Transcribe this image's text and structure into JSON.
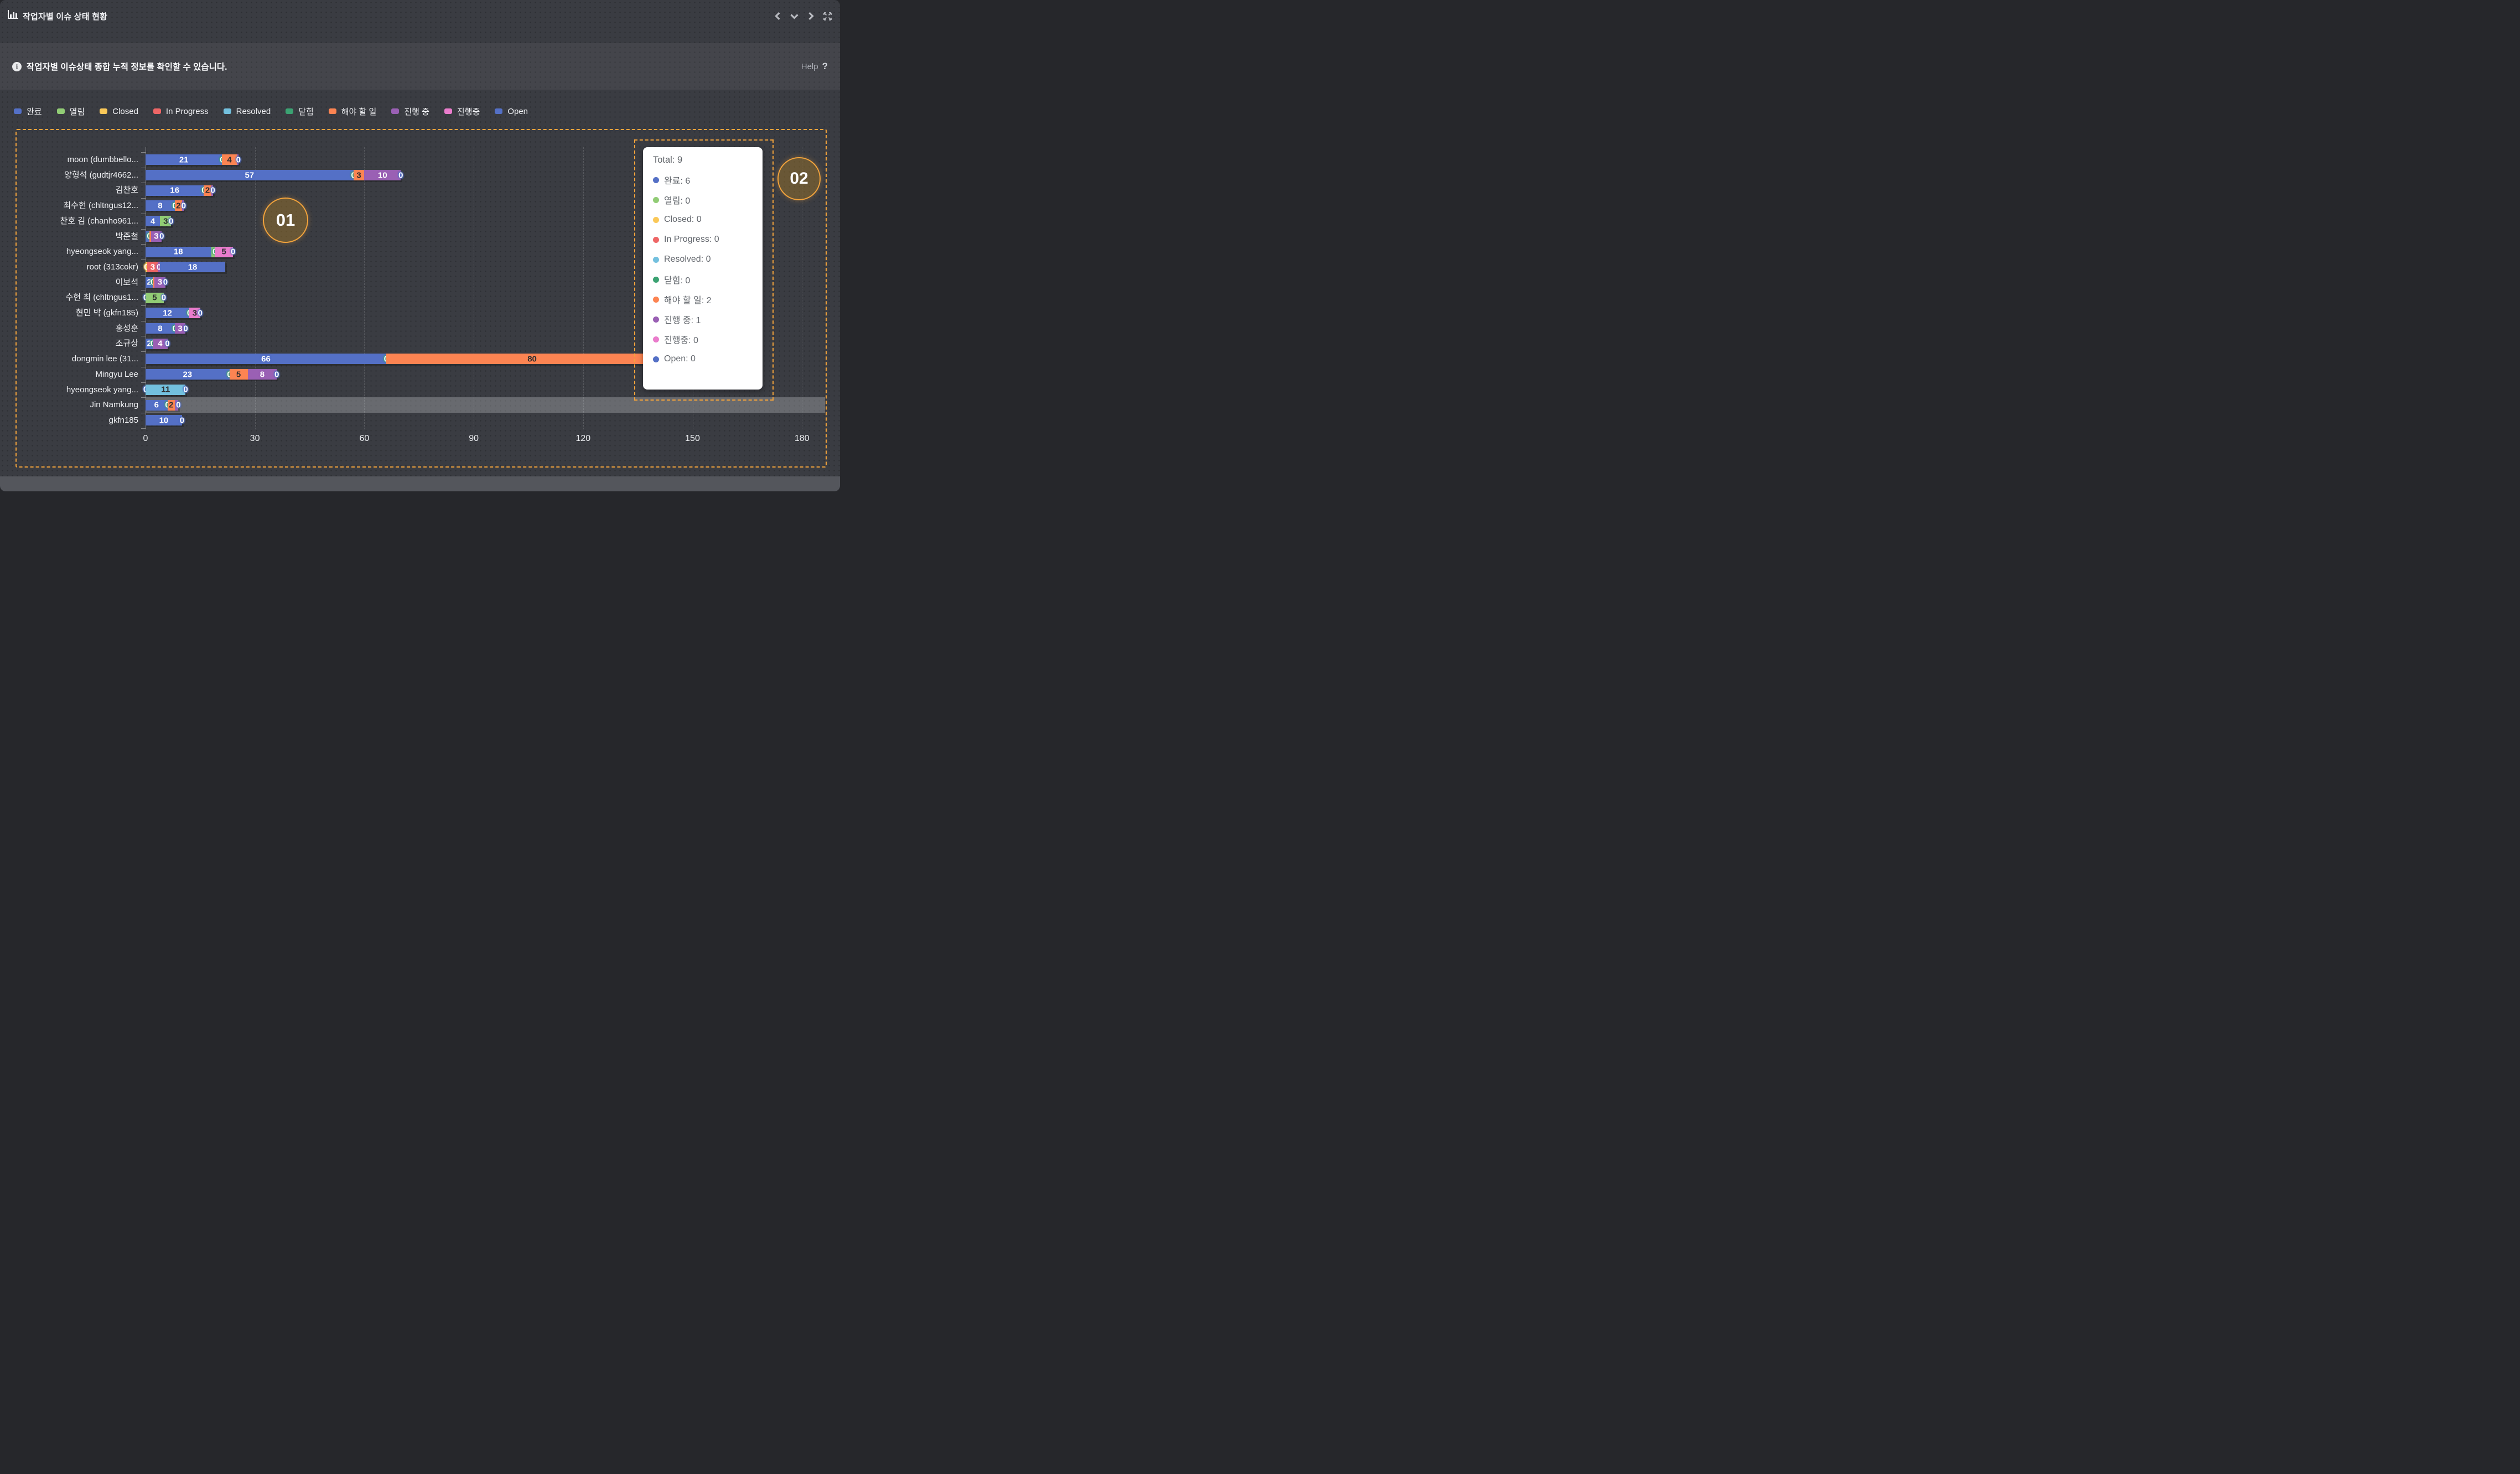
{
  "header": {
    "title": "작업자별 이슈 상태 현황",
    "icons": [
      "bar-chart-icon",
      "chevron-left-icon",
      "chevron-down-icon",
      "chevron-right-icon",
      "expand-icon"
    ]
  },
  "info": {
    "text": "작업자별 이슈상태 종합 누적 정보를 확인할 수 있습니다.",
    "help_label": "Help",
    "help_icon": "question-mark-icon"
  },
  "legend": {
    "items": [
      {
        "label": "완료",
        "color": "#5470c6"
      },
      {
        "label": "열림",
        "color": "#91cc75"
      },
      {
        "label": "Closed",
        "color": "#fac858"
      },
      {
        "label": "In Progress",
        "color": "#ee6666"
      },
      {
        "label": "Resolved",
        "color": "#73c0de"
      },
      {
        "label": "닫힘",
        "color": "#3ba272"
      },
      {
        "label": "해야 할 일",
        "color": "#fc8452"
      },
      {
        "label": "진행 중",
        "color": "#9a60b4"
      },
      {
        "label": "진행중",
        "color": "#ea7ccc"
      },
      {
        "label": "Open",
        "color": "#5470c6"
      }
    ]
  },
  "chart_data": {
    "type": "bar",
    "orientation": "horizontal",
    "stacked": true,
    "title": "작업자별 이슈 상태 현황",
    "xlabel": "",
    "ylabel": "",
    "xlim": [
      0,
      186
    ],
    "x_ticks": [
      "0",
      "30",
      "60",
      "90",
      "120",
      "150",
      "180"
    ],
    "grid": "vertical-dashed",
    "legend_position": "top",
    "highlight_row": "Jin Namkung",
    "series_colors": {
      "완료": "#5470c6",
      "열림": "#91cc75",
      "Closed": "#fac858",
      "In Progress": "#ee6666",
      "Resolved": "#73c0de",
      "닫힘": "#3ba272",
      "해야 할 일": "#fc8452",
      "진행 중": "#9a60b4",
      "진행중": "#ea7ccc",
      "Open": "#5470c6"
    },
    "dark_text_series": [
      "열림",
      "Closed",
      "Resolved",
      "해야 할 일",
      "진행중"
    ],
    "rows": [
      {
        "name": "moon (dumbbello...",
        "segments": [
          {
            "series": "완료",
            "value": 21,
            "label": "21"
          },
          {
            "series": "닫힘",
            "value": 0,
            "label": "0"
          },
          {
            "series": "해야 할 일",
            "value": 4,
            "label": "4"
          },
          {
            "series": "진행 중",
            "value": 0,
            "label": "",
            "sliver": true
          },
          {
            "series": "Open",
            "value": 0,
            "label": "0"
          }
        ]
      },
      {
        "name": "양형석 (gudtjr4662...",
        "segments": [
          {
            "series": "완료",
            "value": 57,
            "label": "57"
          },
          {
            "series": "닫힘",
            "value": 0,
            "label": "0"
          },
          {
            "series": "해야 할 일",
            "value": 3,
            "label": "3"
          },
          {
            "series": "진행 중",
            "value": 10,
            "label": "10"
          },
          {
            "series": "Open",
            "value": 0,
            "label": "0"
          }
        ]
      },
      {
        "name": "김찬호",
        "segments": [
          {
            "series": "완료",
            "value": 16,
            "label": "16"
          },
          {
            "series": "닫힘",
            "value": 0,
            "label": "0"
          },
          {
            "series": "해야 할 일",
            "value": 2,
            "label": "2"
          },
          {
            "series": "진행 중",
            "value": 0,
            "label": "",
            "sliver": true
          },
          {
            "series": "Open",
            "value": 0,
            "label": "0"
          }
        ]
      },
      {
        "name": "최수현 (chltngus12...",
        "segments": [
          {
            "series": "완료",
            "value": 8,
            "label": "8"
          },
          {
            "series": "닫힘",
            "value": 0,
            "label": "0"
          },
          {
            "series": "해야 할 일",
            "value": 2,
            "label": "2"
          },
          {
            "series": "진행 중",
            "value": 0,
            "label": "",
            "sliver": true
          },
          {
            "series": "Open",
            "value": 0,
            "label": "0"
          }
        ]
      },
      {
        "name": "찬호 김 (chanho961...",
        "segments": [
          {
            "series": "완료",
            "value": 4,
            "label": "4"
          },
          {
            "series": "열림",
            "value": 3,
            "label": "3"
          },
          {
            "series": "Open",
            "value": 0,
            "label": "0"
          }
        ]
      },
      {
        "name": "박준철",
        "segments": [
          {
            "series": "완료",
            "value": 1,
            "label": ""
          },
          {
            "series": "닫힘",
            "value": 0,
            "label": "0"
          },
          {
            "series": "해야 할 일",
            "value": 0,
            "label": "",
            "sliver": true
          },
          {
            "series": "진행 중",
            "value": 3,
            "label": "3"
          },
          {
            "series": "Open",
            "value": 0,
            "label": "0"
          }
        ]
      },
      {
        "name": "hyeongseok yang...",
        "segments": [
          {
            "series": "완료",
            "value": 18,
            "label": "18"
          },
          {
            "series": "열림",
            "value": 1,
            "label": ""
          },
          {
            "series": "닫힘",
            "value": 0,
            "label": "0"
          },
          {
            "series": "진행중",
            "value": 5,
            "label": "5"
          },
          {
            "series": "Open",
            "value": 0,
            "label": "0"
          }
        ]
      },
      {
        "name": "root (313cokr)",
        "segments": [
          {
            "series": "Closed",
            "value": 0,
            "label": "0",
            "sliver": true
          },
          {
            "series": "In Progress",
            "value": 3,
            "label": "3"
          },
          {
            "series": "진행 중",
            "value": 0,
            "label": "0",
            "sliver": true
          },
          {
            "series": "Open",
            "value": 18,
            "label": "18"
          }
        ]
      },
      {
        "name": "이보석",
        "segments": [
          {
            "series": "완료",
            "value": 2,
            "label": "2"
          },
          {
            "series": "닫힘",
            "value": 0,
            "label": "0"
          },
          {
            "series": "해야 할 일",
            "value": 0,
            "label": "",
            "sliver": true
          },
          {
            "series": "진행 중",
            "value": 3,
            "label": "3"
          },
          {
            "series": "Open",
            "value": 0,
            "label": "0"
          }
        ]
      },
      {
        "name": "수현 최 (chltngus1...",
        "segments": [
          {
            "series": "완료",
            "value": 0,
            "label": "0"
          },
          {
            "series": "열림",
            "value": 5,
            "label": "5"
          },
          {
            "series": "Open",
            "value": 0,
            "label": "0"
          }
        ]
      },
      {
        "name": "현민 박 (gkfn185)",
        "segments": [
          {
            "series": "완료",
            "value": 12,
            "label": "12"
          },
          {
            "series": "닫힘",
            "value": 0,
            "label": "0"
          },
          {
            "series": "진행중",
            "value": 3,
            "label": "3"
          },
          {
            "series": "Open",
            "value": 0,
            "label": "0"
          }
        ]
      },
      {
        "name": "홍성훈",
        "segments": [
          {
            "series": "완료",
            "value": 8,
            "label": "8"
          },
          {
            "series": "닫힘",
            "value": 0,
            "label": "0"
          },
          {
            "series": "진행 중",
            "value": 3,
            "label": "3"
          },
          {
            "series": "Open",
            "value": 0,
            "label": "0"
          }
        ]
      },
      {
        "name": "조규상",
        "segments": [
          {
            "series": "완료",
            "value": 2,
            "label": "2"
          },
          {
            "series": "닫힘",
            "value": 0,
            "label": "0"
          },
          {
            "series": "진행 중",
            "value": 4,
            "label": "4"
          },
          {
            "series": "Open",
            "value": 0,
            "label": "0"
          }
        ]
      },
      {
        "name": "dongmin lee (31...",
        "segments": [
          {
            "series": "완료",
            "value": 66,
            "label": "66"
          },
          {
            "series": "닫힘",
            "value": 0,
            "label": "0"
          },
          {
            "series": "해야 할 일",
            "value": 80,
            "label": "80"
          }
        ]
      },
      {
        "name": "Mingyu Lee",
        "segments": [
          {
            "series": "완료",
            "value": 23,
            "label": "23"
          },
          {
            "series": "닫힘",
            "value": 0,
            "label": "0"
          },
          {
            "series": "해야 할 일",
            "value": 5,
            "label": "5"
          },
          {
            "series": "진행 중",
            "value": 8,
            "label": "8"
          },
          {
            "series": "Open",
            "value": 0,
            "label": "0"
          }
        ]
      },
      {
        "name": "hyeongseok yang...",
        "segments": [
          {
            "series": "완료",
            "value": 0,
            "label": "0"
          },
          {
            "series": "Resolved",
            "value": 11,
            "label": "11"
          },
          {
            "series": "Open",
            "value": 0,
            "label": "0"
          }
        ]
      },
      {
        "name": "Jin Namkung",
        "highlight": true,
        "segments": [
          {
            "series": "완료",
            "value": 6,
            "label": "6"
          },
          {
            "series": "닫힘",
            "value": 0,
            "label": "0"
          },
          {
            "series": "해야 할 일",
            "value": 2,
            "label": "2"
          },
          {
            "series": "진행 중",
            "value": 1,
            "label": ""
          },
          {
            "series": "Open",
            "value": 0,
            "label": "0"
          }
        ]
      },
      {
        "name": "gkfn185",
        "segments": [
          {
            "series": "완료",
            "value": 10,
            "label": "10"
          },
          {
            "series": "Open",
            "value": 0,
            "label": "0"
          }
        ]
      }
    ]
  },
  "tooltip": {
    "title": "Total: 9",
    "items": [
      {
        "label": "완료",
        "value": "6",
        "color": "#5470c6"
      },
      {
        "label": "열림",
        "value": "0",
        "color": "#91cc75"
      },
      {
        "label": "Closed",
        "value": "0",
        "color": "#fac858"
      },
      {
        "label": "In Progress",
        "value": "0",
        "color": "#ee6666"
      },
      {
        "label": "Resolved",
        "value": "0",
        "color": "#73c0de"
      },
      {
        "label": "닫힘",
        "value": "0",
        "color": "#3ba272"
      },
      {
        "label": "해야 할 일",
        "value": "2",
        "color": "#fc8452"
      },
      {
        "label": "진행 중",
        "value": "1",
        "color": "#9a60b4"
      },
      {
        "label": "진행중",
        "value": "0",
        "color": "#ea7ccc"
      },
      {
        "label": "Open",
        "value": "0",
        "color": "#5470c6"
      }
    ]
  },
  "annotations": {
    "badge_01": "01",
    "badge_02": "02",
    "accent_color": "#f2a33c"
  }
}
